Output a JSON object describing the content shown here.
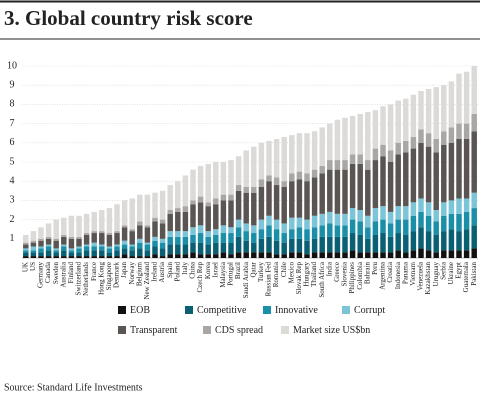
{
  "chart_data": {
    "type": "stacked_bar",
    "title": "3. Global country risk score",
    "source": "Source: Standard Life Investments",
    "categories": [
      "UK",
      "US",
      "Germany",
      "Canada",
      "Sweden",
      "Australia",
      "Finland",
      "Switzerland",
      "Netherlands",
      "France",
      "Hong Kong",
      "Singapore",
      "Denmark",
      "Japan",
      "Norway",
      "Belgium",
      "New Zealand",
      "Ireland",
      "Austria",
      "Spain",
      "Poland",
      "Italy",
      "China",
      "Czech Rep",
      "Korea",
      "Israel",
      "Malaysia",
      "Portugal",
      "Brazil",
      "Saudi Arabia",
      "Qatar",
      "Turkey",
      "Russian Fed",
      "Romania",
      "Chile",
      "Mexico",
      "Slovak Rep",
      "Hungary",
      "Thailand",
      "South Africa",
      "India",
      "Greece",
      "Slovenia",
      "Philippines",
      "Colombia",
      "Bahrain",
      "Peru",
      "Argentina",
      "Croatia",
      "Indonesia",
      "Panama",
      "Vietnam",
      "Venezuela",
      "Kazakhstan",
      "Uruguay",
      "Serbia",
      "Ukraine",
      "Egypt",
      "Guatemala",
      "Pakistan"
    ],
    "series": [
      {
        "name": "EOB",
        "color": "#111111",
        "values": [
          0.1,
          0.1,
          0.1,
          0.1,
          0.1,
          0.1,
          0.1,
          0.1,
          0.1,
          0.1,
          0.1,
          0.1,
          0.1,
          0.2,
          0.1,
          0.1,
          0.1,
          0.2,
          0.1,
          0.2,
          0.2,
          0.2,
          0.3,
          0.2,
          0.2,
          0.2,
          0.3,
          0.2,
          0.3,
          0.3,
          0.3,
          0.3,
          0.3,
          0.2,
          0.2,
          0.3,
          0.3,
          0.2,
          0.3,
          0.3,
          0.3,
          0.3,
          0.3,
          0.4,
          0.3,
          0.3,
          0.3,
          0.3,
          0.3,
          0.4,
          0.3,
          0.4,
          0.5,
          0.4,
          0.3,
          0.4,
          0.4,
          0.4,
          0.4,
          0.5
        ]
      },
      {
        "name": "Competitive",
        "color": "#0b5f73",
        "values": [
          0.2,
          0.2,
          0.2,
          0.3,
          0.2,
          0.3,
          0.2,
          0.2,
          0.3,
          0.3,
          0.3,
          0.2,
          0.3,
          0.3,
          0.3,
          0.4,
          0.3,
          0.4,
          0.4,
          0.5,
          0.5,
          0.5,
          0.5,
          0.6,
          0.5,
          0.6,
          0.5,
          0.6,
          0.8,
          0.6,
          0.5,
          0.7,
          0.8,
          0.7,
          0.6,
          0.7,
          0.7,
          0.7,
          0.7,
          0.8,
          0.8,
          0.8,
          0.8,
          0.9,
          0.9,
          0.7,
          0.9,
          1.0,
          0.8,
          0.9,
          0.9,
          1.0,
          1.1,
          1.0,
          0.9,
          1.0,
          1.1,
          1.0,
          1.1,
          1.2
        ]
      },
      {
        "name": "Innovative",
        "color": "#1b8fa8",
        "values": [
          0.1,
          0.1,
          0.2,
          0.2,
          0.1,
          0.2,
          0.1,
          0.2,
          0.2,
          0.2,
          0.2,
          0.2,
          0.2,
          0.2,
          0.2,
          0.3,
          0.3,
          0.3,
          0.3,
          0.4,
          0.4,
          0.4,
          0.4,
          0.5,
          0.4,
          0.4,
          0.5,
          0.5,
          0.5,
          0.5,
          0.5,
          0.5,
          0.6,
          0.6,
          0.5,
          0.5,
          0.6,
          0.6,
          0.6,
          0.6,
          0.7,
          0.6,
          0.6,
          0.7,
          0.7,
          0.6,
          0.7,
          0.7,
          0.7,
          0.7,
          0.8,
          0.8,
          0.8,
          0.8,
          0.7,
          0.8,
          0.8,
          0.9,
          0.9,
          0.9
        ]
      },
      {
        "name": "Corrupt",
        "color": "#7cc4d8",
        "values": [
          0.1,
          0.2,
          0.1,
          0.1,
          0.1,
          0.1,
          0.1,
          0.1,
          0.1,
          0.2,
          0.1,
          0.1,
          0.1,
          0.2,
          0.1,
          0.2,
          0.1,
          0.2,
          0.2,
          0.3,
          0.3,
          0.3,
          0.4,
          0.4,
          0.3,
          0.3,
          0.4,
          0.3,
          0.4,
          0.4,
          0.4,
          0.5,
          0.5,
          0.5,
          0.5,
          0.6,
          0.5,
          0.5,
          0.6,
          0.6,
          0.6,
          0.6,
          0.6,
          0.6,
          0.6,
          0.6,
          0.7,
          0.7,
          0.6,
          0.7,
          0.7,
          0.7,
          0.7,
          0.7,
          0.6,
          0.7,
          0.7,
          0.8,
          0.7,
          0.8
        ]
      },
      {
        "name": "Transparent",
        "color": "#5a5552",
        "values": [
          0.2,
          0.2,
          0.3,
          0.3,
          0.4,
          0.4,
          0.5,
          0.4,
          0.5,
          0.5,
          0.6,
          0.6,
          0.6,
          0.7,
          0.7,
          0.7,
          0.8,
          0.8,
          0.8,
          0.9,
          1.0,
          1.0,
          1.2,
          1.2,
          1.3,
          1.3,
          1.3,
          1.4,
          1.5,
          1.6,
          1.7,
          1.7,
          1.8,
          1.8,
          1.9,
          1.9,
          2.0,
          2.0,
          2.0,
          2.1,
          2.2,
          2.3,
          2.3,
          2.3,
          2.4,
          2.4,
          2.5,
          2.6,
          2.6,
          2.7,
          2.8,
          2.8,
          2.9,
          2.9,
          3.0,
          3.0,
          3.0,
          3.1,
          3.1,
          3.2
        ]
      },
      {
        "name": "CDS spread",
        "color": "#a9a6a3",
        "values": [
          0.1,
          0.1,
          0.1,
          0.1,
          0.1,
          0.1,
          0.1,
          0.1,
          0.1,
          0.1,
          0.1,
          0.1,
          0.1,
          0.1,
          0.1,
          0.2,
          0.1,
          0.2,
          0.2,
          0.2,
          0.2,
          0.3,
          0.2,
          0.3,
          0.2,
          0.3,
          0.3,
          0.3,
          0.3,
          0.3,
          0.3,
          0.4,
          0.3,
          0.4,
          0.3,
          0.4,
          0.4,
          0.4,
          0.4,
          0.4,
          0.5,
          0.5,
          0.5,
          0.5,
          0.5,
          0.5,
          0.6,
          0.6,
          0.6,
          0.6,
          0.6,
          0.6,
          0.7,
          0.7,
          0.7,
          0.7,
          0.8,
          0.8,
          0.8,
          0.9
        ]
      },
      {
        "name": "Market size US$bn",
        "color": "#dcdad7",
        "values": [
          0.4,
          0.5,
          0.6,
          0.7,
          1.0,
          0.9,
          1.1,
          1.1,
          1.0,
          1.0,
          1.1,
          1.3,
          1.4,
          1.3,
          1.6,
          1.4,
          1.6,
          1.3,
          1.5,
          1.3,
          1.4,
          1.6,
          1.6,
          1.6,
          2.0,
          1.9,
          1.7,
          1.8,
          1.5,
          1.9,
          2.1,
          1.9,
          1.8,
          2.0,
          2.3,
          2.0,
          2.0,
          2.1,
          2.0,
          2.0,
          1.9,
          2.1,
          2.2,
          2.0,
          2.1,
          2.5,
          2.0,
          2.0,
          2.4,
          2.2,
          2.2,
          2.2,
          2.0,
          2.3,
          2.7,
          2.4,
          2.4,
          2.6,
          2.7,
          2.5
        ]
      }
    ],
    "ylim": [
      0,
      10
    ],
    "yticks": [
      1,
      2,
      3,
      4,
      5,
      6,
      7,
      8,
      9,
      10
    ],
    "grid": true
  }
}
